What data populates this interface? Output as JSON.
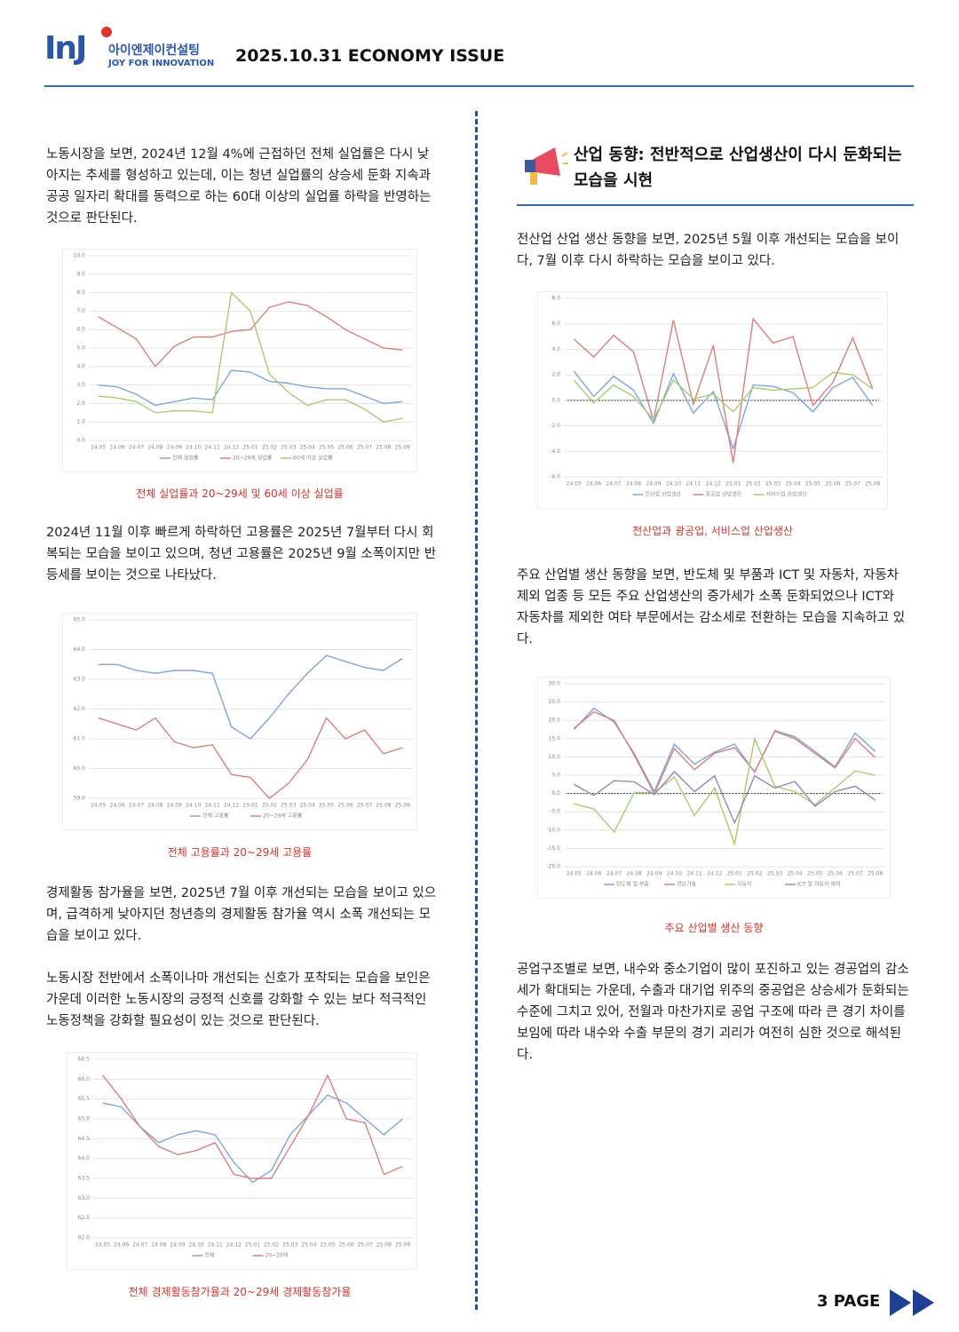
{
  "header": {
    "logo": "InJ",
    "company": "아이엔제이컨설팅",
    "slogan": "JOY FOR INNOVATION",
    "issue": "2025.10.31 ECONOMY ISSUE"
  },
  "left": {
    "paragraphs": [
      "노동시장을 보면, 2024년 12월 4%에 근접하던 전체 실업률은 다시 낮아지는 추세를 형성하고 있는데, 이는 청년 실업률의 상승세 둔화 지속과 공공 일자리 확대를 동력으로 하는 60대 이상의 실업률 하락을 반영하는 것으로 판단된다.",
      "2024년 11월 이후 빠르게 하락하던 고용률은 2025년 7월부터 다시 회복되는 모습을 보이고 있으며, 청년 고용률은 2025년 9월 소폭이지만 반등세를 보이는 것으로 나타났다.",
      "경제활동 참가율을 보면, 2025년 7월 이후 개선되는 모습을 보이고 있으며, 급격하게 낮아지던 청년층의 경제활동 참가율 역시 소폭 개선되는 모습을 보이고 있다.",
      "노동시장 전반에서 소폭이나마 개선되는 신호가 포착되는 모습을 보인은 가운데 이러한 노동시장의 긍정적 신호를 강화할 수 있는 보다 적극적인 노동정책을 강화할 필요성이 있는 것으로 판단된다."
    ]
  },
  "right": {
    "heading": "산업 동향: 전반적으로 산업생산이 다시 둔화되는 모습을 시현",
    "paragraphs": [
      "전산업 산업 생산 동향을 보면, 2025년 5월 이후 개선되는 모습을 보이다, 7월 이후 다시 하락하는 모습을 보이고 있다.",
      "주요 산업별 생산 동향을 보면, 반도체 및 부품과 ICT 및 자동차, 자동차 제외 업종 등 모든 주요 산업생산의 증가세가 소폭 둔화되었으나 ICT와 자동차를 제외한 여타 부문에서는 감소세로 전환하는 모습을 지속하고 있다.",
      "공업구조별로 보면, 내수와 중소기업이 많이 포진하고 있는 경공업의 감소세가 확대되는 가운데, 수출과 대기업 위주의 중공업은 상승세가 둔화되는 수준에 그치고 있어, 전월과 마찬가지로 공업 구조에 따라 큰 경기 차이를 보임에 따라 내수와 수출 부문의 경기 괴리가 여전히 심한 것으로 해석된다."
    ]
  },
  "charts": [
    {
      "type": "line",
      "caption": "전체 실업률과 20~29세 및 60세 이상 실업률",
      "categories": [
        "24.05",
        "24.06",
        "24.07",
        "24.08",
        "24.09",
        "24.10",
        "24.11",
        "24.12",
        "25.01",
        "25.02",
        "25.03",
        "25.04",
        "25.05",
        "25.06",
        "25.07",
        "25.08",
        "25.09"
      ],
      "ylim": [
        0,
        10
      ],
      "yticks": [
        {
          "value": 0,
          "label": "0.0"
        },
        {
          "value": 1,
          "label": "1.0"
        },
        {
          "value": 2,
          "label": "2.0"
        },
        {
          "value": 3,
          "label": "3.0"
        },
        {
          "value": 4,
          "label": "4.0"
        },
        {
          "value": 5,
          "label": "5.0"
        },
        {
          "value": 6,
          "label": "6.0"
        },
        {
          "value": 7,
          "label": "7.0"
        },
        {
          "value": 8,
          "label": "8.0"
        },
        {
          "value": 9,
          "label": "9.0"
        },
        {
          "value": 10,
          "label": "10.0"
        }
      ],
      "series": [
        {
          "name": "전체 실업률",
          "color": "#7ea6d8",
          "values": [
            3.0,
            2.9,
            2.5,
            1.9,
            2.1,
            2.3,
            2.2,
            3.8,
            3.7,
            3.2,
            3.1,
            2.9,
            2.8,
            2.8,
            2.4,
            2.0,
            2.1
          ]
        },
        {
          "name": "20~29세 실업률",
          "color": "#d97f7c",
          "values": [
            6.7,
            6.1,
            5.5,
            4.0,
            5.1,
            5.6,
            5.6,
            5.9,
            6.0,
            7.2,
            7.5,
            7.3,
            6.7,
            6.0,
            5.5,
            5.0,
            4.9
          ]
        },
        {
          "name": "60세 이상 실업률",
          "color": "#aacb6e",
          "values": [
            2.4,
            2.3,
            2.1,
            1.5,
            1.6,
            1.6,
            1.5,
            8.0,
            7.0,
            3.6,
            2.6,
            1.9,
            2.2,
            2.2,
            1.7,
            1.0,
            1.2
          ]
        }
      ]
    },
    {
      "type": "line",
      "caption": "전체 고용률과 20~29세 고용률",
      "categories": [
        "24.05",
        "24.06",
        "24.07",
        "24.08",
        "24.09",
        "24.10",
        "24.11",
        "24.12",
        "25.01",
        "25.02",
        "25.03",
        "25.04",
        "25.05",
        "25.06",
        "25.07",
        "25.08",
        "25.09"
      ],
      "ylim": [
        59,
        65
      ],
      "yticks": [
        {
          "value": 59,
          "label": "59.0"
        },
        {
          "value": 60,
          "label": "60.0"
        },
        {
          "value": 61,
          "label": "61.0"
        },
        {
          "value": 62,
          "label": "62.0"
        },
        {
          "value": 63,
          "label": "63.0"
        },
        {
          "value": 64,
          "label": "64.0"
        },
        {
          "value": 65,
          "label": "65.0"
        }
      ],
      "series": [
        {
          "name": "전체 고용률",
          "color": "#7ea6d8",
          "values": [
            63.5,
            63.5,
            63.3,
            63.2,
            63.3,
            63.3,
            63.2,
            61.4,
            61.0,
            61.7,
            62.5,
            63.2,
            63.8,
            63.6,
            63.4,
            63.3,
            63.7
          ]
        },
        {
          "name": "20~29세 고용률",
          "color": "#d97f7c",
          "values": [
            61.7,
            61.5,
            61.3,
            61.7,
            60.9,
            60.7,
            60.8,
            59.8,
            59.7,
            59.0,
            59.5,
            60.3,
            61.7,
            61.0,
            61.3,
            60.5,
            60.7
          ]
        }
      ]
    },
    {
      "type": "line",
      "caption": "전체 경제활동참가율과 20~29세 경제활동참가율",
      "categories": [
        "24.05",
        "24.06",
        "24.07",
        "24.08",
        "24.09",
        "24.10",
        "24.11",
        "24.12",
        "25.01",
        "25.02",
        "25.03",
        "25.04",
        "25.05",
        "25.06",
        "25.07",
        "25.08",
        "25.09"
      ],
      "ylim": [
        62,
        66.5
      ],
      "yticks": [
        {
          "value": 62,
          "label": "62.0"
        },
        {
          "value": 62.5,
          "label": "62.5"
        },
        {
          "value": 63,
          "label": "63.0"
        },
        {
          "value": 63.5,
          "label": "63.5"
        },
        {
          "value": 64,
          "label": "64.0"
        },
        {
          "value": 64.5,
          "label": "64.5"
        },
        {
          "value": 65,
          "label": "65.0"
        },
        {
          "value": 65.5,
          "label": "65.5"
        },
        {
          "value": 66,
          "label": "66.0"
        },
        {
          "value": 66.5,
          "label": "66.5"
        }
      ],
      "series": [
        {
          "name": "전체",
          "color": "#7ea6d8",
          "values": [
            65.4,
            65.3,
            64.8,
            64.4,
            64.6,
            64.7,
            64.6,
            63.9,
            63.4,
            63.7,
            64.6,
            65.1,
            65.6,
            65.4,
            65.0,
            64.6,
            65.0
          ]
        },
        {
          "name": "20~29세",
          "color": "#d97f7c",
          "values": [
            66.1,
            65.5,
            64.8,
            64.3,
            64.1,
            64.2,
            64.4,
            63.6,
            63.5,
            63.5,
            64.3,
            65.1,
            66.1,
            65.0,
            64.9,
            63.6,
            63.8
          ]
        }
      ]
    },
    {
      "type": "line",
      "caption": "전산업과 광공업, 서비스업 산업생산",
      "zero_line": true,
      "categories": [
        "24.05",
        "24.06",
        "24.07",
        "24.08",
        "24.09",
        "24.10",
        "24.11",
        "24.12",
        "25.01",
        "25.02",
        "25.03",
        "25.04",
        "25.05",
        "25.06",
        "25.07",
        "25.08"
      ],
      "ylim": [
        -6,
        8
      ],
      "yticks": [
        {
          "value": -6,
          "label": "-6.0"
        },
        {
          "value": -4,
          "label": "-4.0"
        },
        {
          "value": -2,
          "label": "-2.0"
        },
        {
          "value": 0,
          "label": "0.0"
        },
        {
          "value": 2,
          "label": "2.0"
        },
        {
          "value": 4,
          "label": "4.0"
        },
        {
          "value": 6,
          "label": "6.0"
        },
        {
          "value": 8,
          "label": "8.0"
        }
      ],
      "series": [
        {
          "name": "전산업 산업생산",
          "color": "#7ea6d8",
          "values": [
            2.3,
            0.3,
            1.9,
            0.8,
            -1.8,
            2.1,
            -1.0,
            0.7,
            -3.8,
            1.2,
            1.1,
            0.6,
            -0.9,
            1.0,
            1.8,
            -0.4
          ]
        },
        {
          "name": "광공업 산업생산",
          "color": "#d97f7c",
          "values": [
            4.8,
            3.4,
            5.1,
            3.8,
            -1.6,
            6.3,
            -0.3,
            4.3,
            -4.9,
            6.4,
            4.5,
            5.0,
            -0.4,
            1.4,
            4.9,
            0.9
          ]
        },
        {
          "name": "서비스업 산업생산",
          "color": "#aacb6e",
          "values": [
            1.6,
            -0.2,
            1.2,
            0.3,
            -1.5,
            1.6,
            0.1,
            0.5,
            -0.9,
            1.0,
            0.8,
            0.9,
            1.0,
            2.2,
            2.0,
            0.9
          ]
        }
      ]
    },
    {
      "type": "line",
      "caption": "주요 산업별 생산 동향",
      "zero_line": true,
      "categories": [
        "24.05",
        "24.06",
        "24.07",
        "24.08",
        "24.09",
        "24.10",
        "24.11",
        "24.12",
        "25.01",
        "25.02",
        "25.03",
        "25.04",
        "25.05",
        "25.06",
        "25.07",
        "25.08"
      ],
      "ylim": [
        -20,
        30
      ],
      "yticks": [
        {
          "value": -20,
          "label": "-20.0"
        },
        {
          "value": -15,
          "label": "-15.0"
        },
        {
          "value": -10,
          "label": "-10.0"
        },
        {
          "value": -5,
          "label": "-5.0"
        },
        {
          "value": 0,
          "label": "0.0"
        },
        {
          "value": 5,
          "label": "5.0"
        },
        {
          "value": 10,
          "label": "10.0"
        },
        {
          "value": 15,
          "label": "15.0"
        },
        {
          "value": 20,
          "label": "20.0"
        },
        {
          "value": 25,
          "label": "25.0"
        },
        {
          "value": 30,
          "label": "30.0"
        }
      ],
      "series": [
        {
          "name": "반도체 및 부품",
          "color": "#7ea6d8",
          "values": [
            17.5,
            23.3,
            19.5,
            11.0,
            0.5,
            13.5,
            8.0,
            11.3,
            13.5,
            5.8,
            17.2,
            15.5,
            11.5,
            7.3,
            16.5,
            11.5
          ]
        },
        {
          "name": "정보기술",
          "color": "#d97f7c",
          "values": [
            17.8,
            22.3,
            20.0,
            10.5,
            0.0,
            12.3,
            6.5,
            11.0,
            12.5,
            6.0,
            17.0,
            15.0,
            11.0,
            7.0,
            15.0,
            9.8
          ]
        },
        {
          "name": "자동차",
          "color": "#aacb6e",
          "values": [
            -2.8,
            -4.2,
            -10.5,
            0.3,
            0.3,
            4.5,
            -6.0,
            1.5,
            -13.8,
            15.0,
            2.0,
            0.5,
            -3.0,
            1.5,
            6.2,
            5.0
          ]
        },
        {
          "name": "ICT 및 자동차 제외",
          "color": "#9a86b8",
          "values": [
            2.5,
            -0.5,
            3.5,
            3.2,
            -0.3,
            6.0,
            0.5,
            4.8,
            -8.0,
            4.8,
            1.5,
            3.3,
            -3.5,
            0.5,
            2.0,
            -1.8
          ]
        }
      ]
    }
  ],
  "footer": {
    "page": "3 PAGE"
  }
}
